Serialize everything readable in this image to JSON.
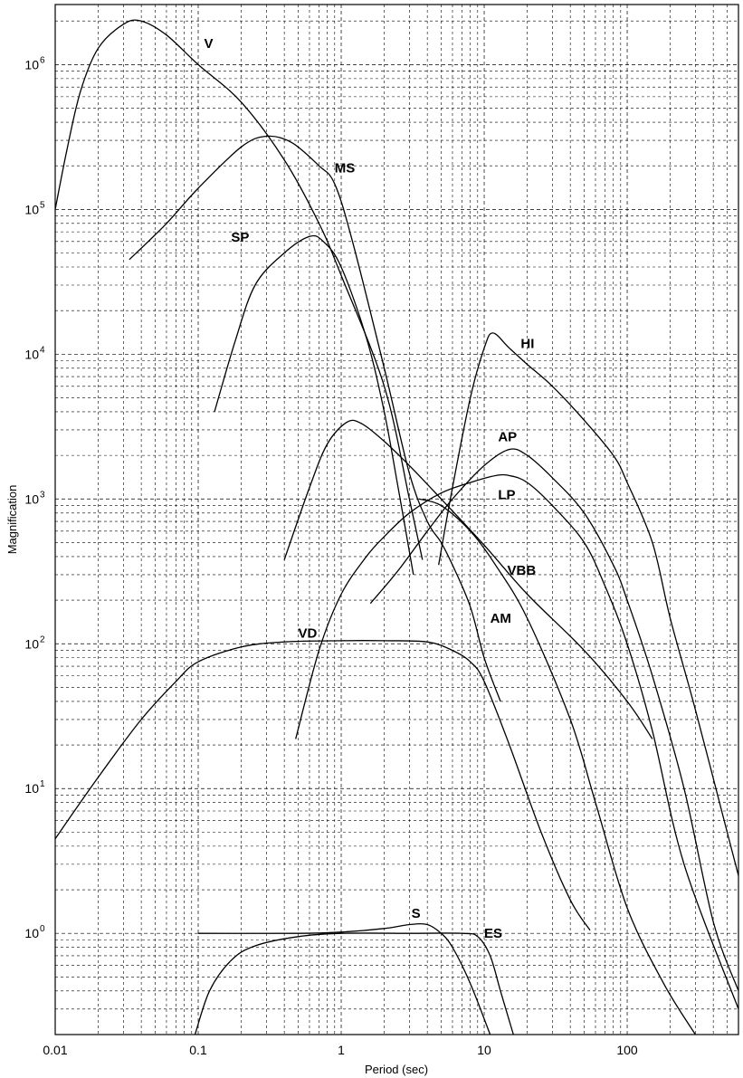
{
  "chart_data": {
    "type": "line",
    "title": "",
    "xlabel": "Period (sec)",
    "ylabel": "Magnification",
    "xscale": "log",
    "yscale": "log",
    "xlim": [
      0.01,
      600
    ],
    "ylim": [
      0.2,
      2600000
    ],
    "grid": true,
    "x_tick_labels": [
      "0.01",
      "0.1",
      "1",
      "10",
      "100"
    ],
    "y_tick_labels": [
      {
        "base": "10",
        "exp": "0"
      },
      {
        "base": "10",
        "exp": "1"
      },
      {
        "base": "10",
        "exp": "2"
      },
      {
        "base": "10",
        "exp": "3"
      },
      {
        "base": "10",
        "exp": "4"
      },
      {
        "base": "10",
        "exp": "5"
      },
      {
        "base": "10",
        "exp": "6"
      }
    ],
    "series": [
      {
        "name": "V",
        "label_at": [
          0.11,
          1300000
        ],
        "points": [
          [
            0.01,
            100000
          ],
          [
            0.012,
            250000
          ],
          [
            0.015,
            650000
          ],
          [
            0.02,
            1300000
          ],
          [
            0.03,
            1900000
          ],
          [
            0.04,
            2000000
          ],
          [
            0.06,
            1600000
          ],
          [
            0.1,
            1000000
          ],
          [
            0.2,
            550000
          ],
          [
            0.4,
            220000
          ],
          [
            0.7,
            80000
          ],
          [
            1,
            35000
          ],
          [
            2,
            6000
          ],
          [
            3,
            1000
          ],
          [
            3.7,
            380
          ]
        ]
      },
      {
        "name": "MS",
        "label_at": [
          0.9,
          180000
        ],
        "points": [
          [
            0.033,
            45000
          ],
          [
            0.06,
            80000
          ],
          [
            0.1,
            140000
          ],
          [
            0.2,
            270000
          ],
          [
            0.3,
            320000
          ],
          [
            0.45,
            290000
          ],
          [
            0.7,
            200000
          ],
          [
            0.9,
            150000
          ],
          [
            1.2,
            60000
          ],
          [
            2,
            8000
          ],
          [
            3,
            1500
          ],
          [
            4,
            700
          ],
          [
            5,
            500
          ],
          [
            6,
            350
          ],
          [
            8,
            180
          ],
          [
            10,
            80
          ],
          [
            13,
            40
          ]
        ]
      },
      {
        "name": "SP",
        "label_at": [
          0.17,
          60000
        ],
        "points": [
          [
            0.13,
            4000
          ],
          [
            0.18,
            12000
          ],
          [
            0.25,
            30000
          ],
          [
            0.4,
            50000
          ],
          [
            0.6,
            65000
          ],
          [
            0.75,
            60000
          ],
          [
            1,
            40000
          ],
          [
            1.5,
            13000
          ],
          [
            2,
            4000
          ],
          [
            2.5,
            1200
          ],
          [
            3.2,
            300
          ]
        ]
      },
      {
        "name": "HI",
        "label_at": [
          18,
          11000
        ],
        "points": [
          [
            4.8,
            350
          ],
          [
            6,
            1200
          ],
          [
            8,
            5000
          ],
          [
            10,
            11000
          ],
          [
            11.5,
            14000
          ],
          [
            15,
            11000
          ],
          [
            20,
            8500
          ],
          [
            30,
            6000
          ],
          [
            50,
            3500
          ],
          [
            80,
            2000
          ],
          [
            100,
            1300
          ],
          [
            150,
            500
          ],
          [
            200,
            150
          ],
          [
            300,
            35
          ],
          [
            500,
            5
          ],
          [
            600,
            2.5
          ]
        ]
      },
      {
        "name": "AP",
        "label_at": [
          12.5,
          2500
        ],
        "points": [
          [
            1.6,
            190
          ],
          [
            2.5,
            320
          ],
          [
            4,
            600
          ],
          [
            6,
            1000
          ],
          [
            10,
            1700
          ],
          [
            15,
            2200
          ],
          [
            20,
            2000
          ],
          [
            30,
            1400
          ],
          [
            50,
            800
          ],
          [
            80,
            350
          ],
          [
            100,
            200
          ],
          [
            150,
            60
          ],
          [
            250,
            10
          ],
          [
            400,
            1.2
          ],
          [
            600,
            0.4
          ]
        ]
      },
      {
        "name": "LP",
        "label_at": [
          12.5,
          1000
        ],
        "points": [
          [
            0.48,
            22
          ],
          [
            0.7,
            90
          ],
          [
            1,
            220
          ],
          [
            1.5,
            400
          ],
          [
            2,
            550
          ],
          [
            3,
            800
          ],
          [
            5,
            1100
          ],
          [
            8,
            1300
          ],
          [
            12,
            1450
          ],
          [
            15,
            1450
          ],
          [
            20,
            1300
          ],
          [
            30,
            900
          ],
          [
            50,
            500
          ],
          [
            70,
            250
          ],
          [
            100,
            100
          ],
          [
            150,
            25
          ],
          [
            250,
            3
          ],
          [
            600,
            0.3
          ]
        ]
      },
      {
        "name": "VBB",
        "label_at": [
          14.5,
          300
        ],
        "points": [
          [
            0.4,
            380
          ],
          [
            0.6,
            1200
          ],
          [
            0.8,
            2400
          ],
          [
            1.1,
            3400
          ],
          [
            1.4,
            3300
          ],
          [
            2,
            2500
          ],
          [
            3,
            1700
          ],
          [
            5,
            1000
          ],
          [
            10,
            480
          ],
          [
            20,
            220
          ],
          [
            50,
            90
          ],
          [
            100,
            40
          ],
          [
            150,
            22
          ]
        ]
      },
      {
        "name": "AM",
        "label_at": [
          11,
          140
        ],
        "points": [
          [
            3.5,
            1000
          ],
          [
            5,
            900
          ],
          [
            8,
            600
          ],
          [
            12,
            350
          ],
          [
            20,
            150
          ],
          [
            40,
            30
          ],
          [
            60,
            8
          ],
          [
            100,
            1.5
          ],
          [
            180,
            0.45
          ],
          [
            300,
            0.2
          ]
        ]
      },
      {
        "name": "VD",
        "label_at": [
          0.5,
          110
        ],
        "points": [
          [
            0.01,
            4.5
          ],
          [
            0.02,
            12
          ],
          [
            0.04,
            30
          ],
          [
            0.07,
            55
          ],
          [
            0.1,
            75
          ],
          [
            0.2,
            95
          ],
          [
            0.4,
            103
          ],
          [
            1,
            105
          ],
          [
            2,
            105
          ],
          [
            4,
            103
          ],
          [
            6,
            90
          ],
          [
            8,
            75
          ],
          [
            10,
            55
          ],
          [
            15,
            20
          ],
          [
            25,
            5
          ],
          [
            40,
            1.7
          ],
          [
            55,
            1.05
          ]
        ]
      },
      {
        "name": "S",
        "label_at": [
          3.1,
          1.28
        ],
        "points": [
          [
            0.1,
            1.0
          ],
          [
            0.5,
            1.0
          ],
          [
            1,
            1.02
          ],
          [
            2,
            1.08
          ],
          [
            3,
            1.15
          ],
          [
            4,
            1.15
          ],
          [
            5,
            1.0
          ],
          [
            6,
            0.8
          ],
          [
            8,
            0.45
          ],
          [
            11,
            0.2
          ]
        ]
      },
      {
        "name": "ES",
        "label_at": [
          10,
          0.93
        ],
        "points": [
          [
            0.095,
            0.2
          ],
          [
            0.12,
            0.4
          ],
          [
            0.17,
            0.65
          ],
          [
            0.25,
            0.82
          ],
          [
            0.5,
            0.95
          ],
          [
            1,
            1.0
          ],
          [
            3,
            1.0
          ],
          [
            7,
            1.0
          ],
          [
            9,
            0.95
          ],
          [
            11,
            0.7
          ],
          [
            13,
            0.4
          ],
          [
            16,
            0.2
          ]
        ]
      }
    ]
  }
}
